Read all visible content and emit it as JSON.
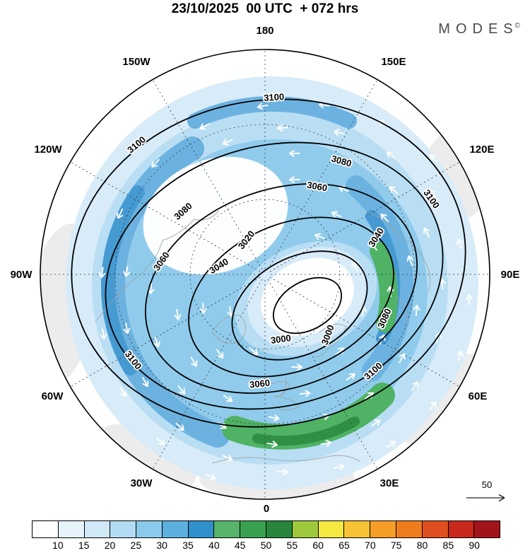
{
  "header": {
    "title": "23/10/2025  00 UTC  + 072 hrs"
  },
  "branding": {
    "name": "MODES",
    "mark": "©"
  },
  "map": {
    "lon_labels": [
      "180",
      "150E",
      "120E",
      "90E",
      "60E",
      "30E",
      "0",
      "30W",
      "60W",
      "90W",
      "120W",
      "150W"
    ],
    "contour_labels": [
      "3100",
      "3100",
      "3100",
      "3100",
      "3100",
      "3080",
      "3080",
      "3080",
      "3060",
      "3060",
      "3060",
      "3040",
      "3040",
      "3020",
      "3000",
      "3000"
    ],
    "reference_vector_label": "50"
  },
  "colorbar": {
    "ticks": [
      "10",
      "15",
      "20",
      "25",
      "30",
      "35",
      "40",
      "45",
      "50",
      "55",
      "60",
      "65",
      "70",
      "75",
      "80",
      "85",
      "90"
    ],
    "colors": [
      "#ffffff",
      "#e6f3fb",
      "#d0e9f7",
      "#b2dcf3",
      "#8acaeb",
      "#5cb0e0",
      "#2f90cc",
      "#55b46a",
      "#3aa151",
      "#27863c",
      "#9fc93c",
      "#f4e841",
      "#f7c334",
      "#f59d27",
      "#ef7c1c",
      "#e04f1f",
      "#c9281c",
      "#a3131a"
    ]
  },
  "chart_data": {
    "type": "contour_map",
    "title": "23/10/2025 00 UTC + 072 hrs",
    "datetime": "23/10/2025 00 UTC",
    "lead_time_hours": 72,
    "projection": "north polar view, 180 at top, 0 at bottom, longitude labels every 30 degrees",
    "longitude_labels": [
      "180",
      "150E",
      "120E",
      "90E",
      "60E",
      "30E",
      "0",
      "30W",
      "60W",
      "90W",
      "120W",
      "150W"
    ],
    "contour_labels_visible": [
      3000,
      3020,
      3040,
      3060,
      3080,
      3100
    ],
    "contour_interval": 20,
    "shading_ticks": [
      10,
      15,
      20,
      25,
      30,
      35,
      40,
      45,
      50,
      55,
      60,
      65,
      70,
      75,
      80,
      85,
      90
    ],
    "shading_interval": 5,
    "shading_palette": [
      "#ffffff",
      "#e6f3fb",
      "#d0e9f7",
      "#b2dcf3",
      "#8acaeb",
      "#5cb0e0",
      "#2f90cc",
      "#55b46a",
      "#3aa151",
      "#27863c",
      "#9fc93c",
      "#f4e841",
      "#f7c334",
      "#f59d27",
      "#ef7c1c",
      "#e04f1f",
      "#c9281c",
      "#a3131a"
    ],
    "vector_reference_value": 50,
    "legend_position": "bottom",
    "branding": "MODES©"
  }
}
